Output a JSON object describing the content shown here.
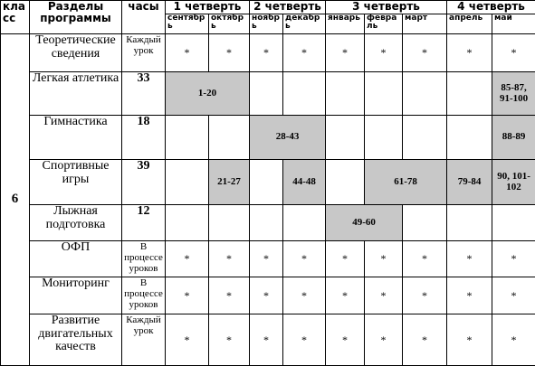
{
  "header": {
    "class_label": "кла сс",
    "sections_label": "Разделы программы",
    "hours_label": "часы",
    "quarters": [
      "1 четверть",
      "2 четверть",
      "3 четверть",
      "4 четверть"
    ],
    "months": [
      "сентябр ь",
      "октябр ь",
      "ноябр ь",
      "декабр ь",
      "январь",
      "февра ль",
      "март",
      "апрель",
      "май"
    ]
  },
  "grade": "6",
  "rows": [
    {
      "section": "Теоретические сведения",
      "hours": "Каждый урок",
      "star": "*"
    },
    {
      "section": "Легкая атлетика",
      "hours": "33",
      "ranges": [
        "1-20",
        "85-87, 91-100"
      ]
    },
    {
      "section": "Гимнастика",
      "hours": "18",
      "ranges": [
        "28-43",
        "88-89"
      ]
    },
    {
      "section": "Спортивные игры",
      "hours": "39",
      "ranges": [
        "21-27",
        "44-48",
        "61-78",
        "79-84",
        "90, 101-102"
      ]
    },
    {
      "section": "Лыжная подготовка",
      "hours": "12",
      "ranges": [
        "49-60"
      ]
    },
    {
      "section": "ОФП",
      "hours": "В процессе уроков",
      "star": "*"
    },
    {
      "section": "Мониторинг",
      "hours": "В процессе уроков",
      "star": "*"
    },
    {
      "section": "Развитие двигательных качеств",
      "hours": "Каждый урок",
      "star": "*"
    }
  ],
  "colors": {
    "shaded": "#c8c8c8",
    "border": "#000000"
  }
}
